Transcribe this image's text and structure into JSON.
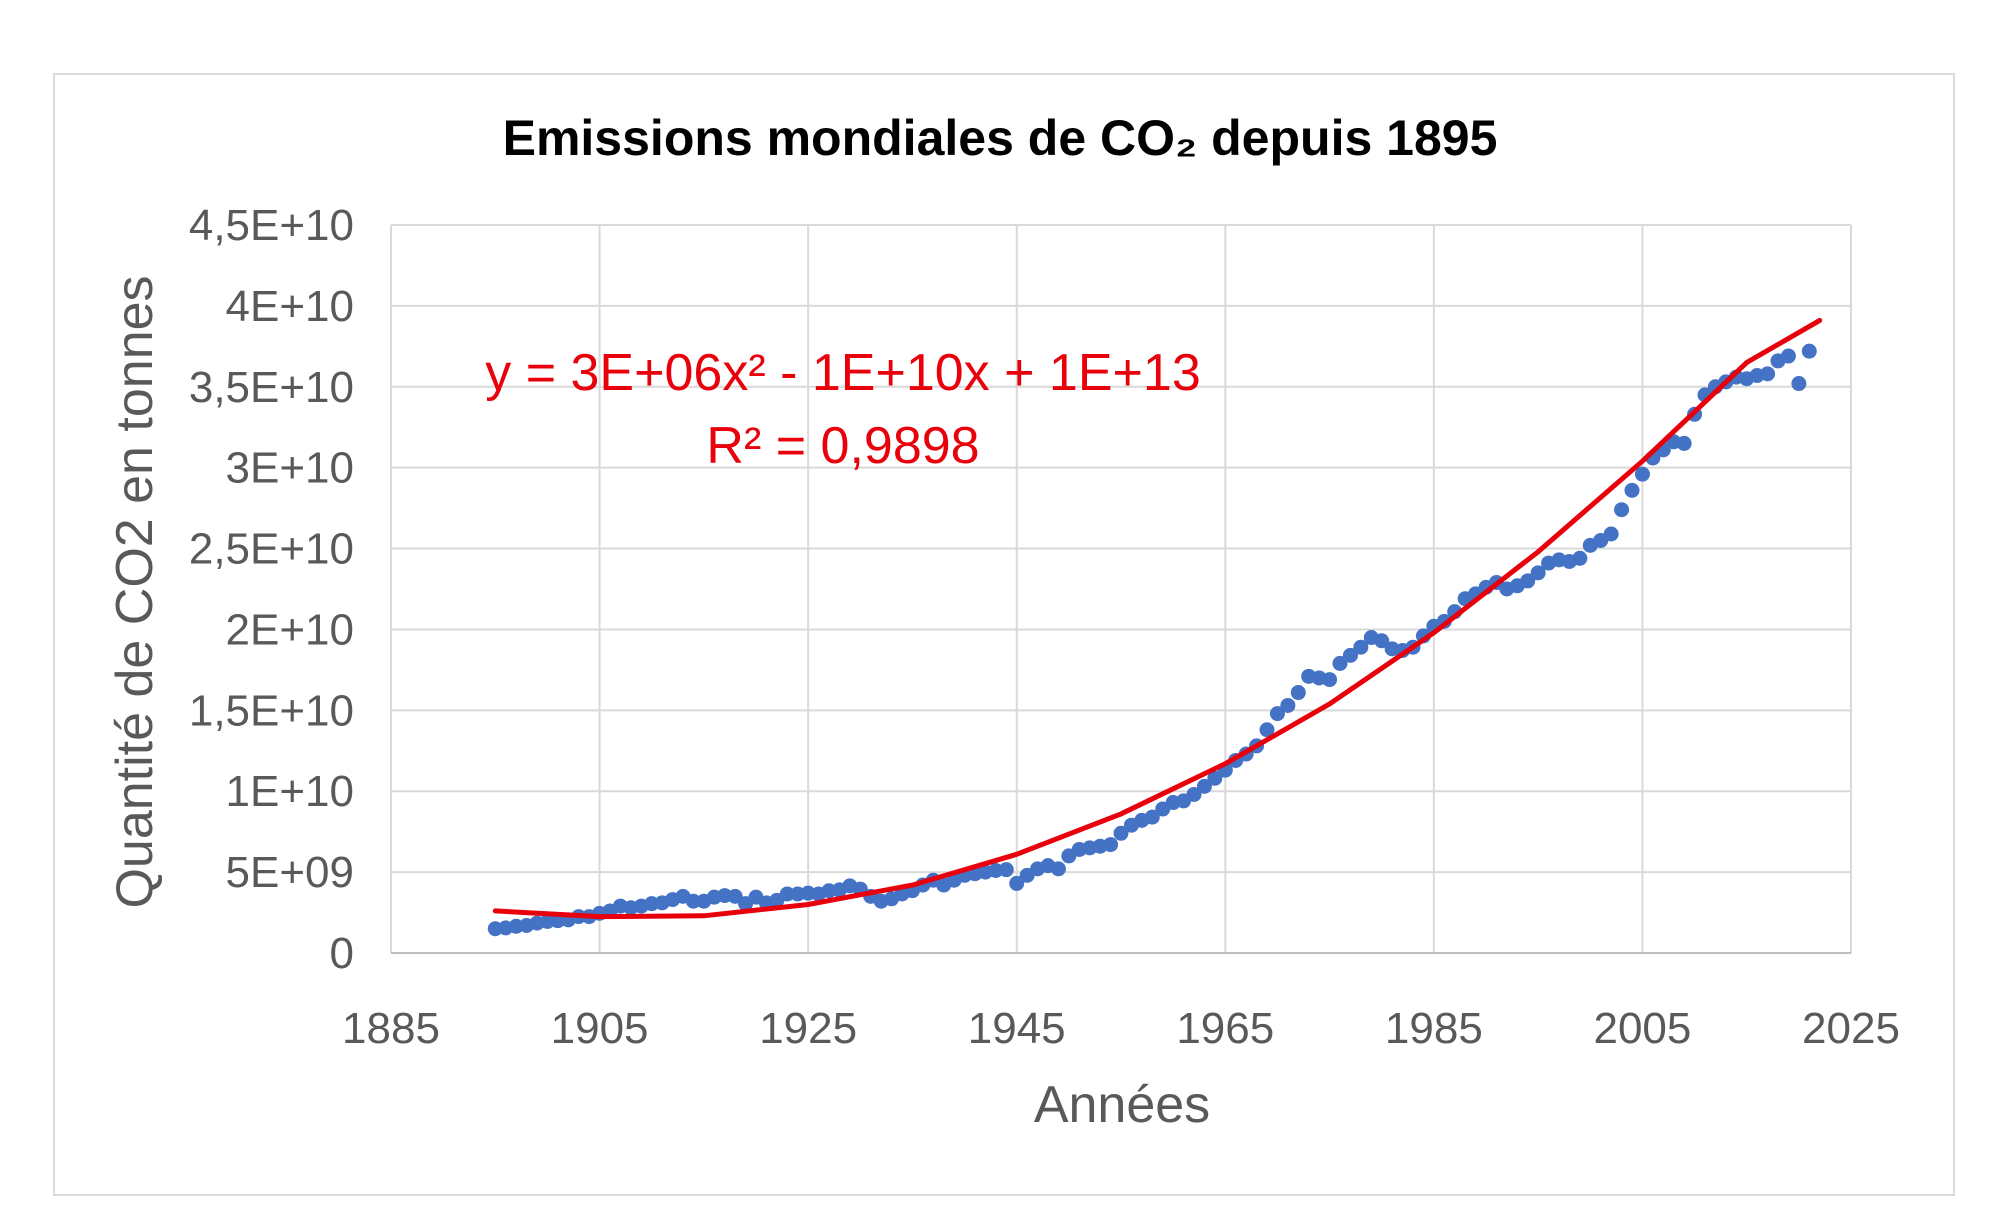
{
  "chart_data": {
    "type": "scatter",
    "title": "Emissions mondiales de CO₂ depuis 1895",
    "xlabel": "Années",
    "ylabel": "Quantité de CO2 en tonnes",
    "xlim": [
      1885,
      2025
    ],
    "ylim": [
      0,
      45000000000
    ],
    "x_ticks": [
      1885,
      1905,
      1925,
      1945,
      1965,
      1985,
      2005,
      2025
    ],
    "x_tick_labels": [
      "1885",
      "1905",
      "1925",
      "1945",
      "1965",
      "1985",
      "2005",
      "2025"
    ],
    "y_ticks": [
      0,
      5000000000,
      10000000000,
      15000000000,
      20000000000,
      25000000000,
      30000000000,
      35000000000,
      40000000000,
      45000000000
    ],
    "y_tick_labels": [
      "0",
      "5E+09",
      "1E+10",
      "1,5E+10",
      "2E+10",
      "2,5E+10",
      "3E+10",
      "3,5E+10",
      "4E+10",
      "4,5E+10"
    ],
    "grid": true,
    "colors": {
      "points": "#4472c4",
      "trend": "#e8000b",
      "grid": "#d9d9d9"
    },
    "trendline": {
      "type": "polynomial",
      "order": 2,
      "equation": "y = 3E+06x² - 1E+10x + 1E+13",
      "r2_label": "R² = 0,9898",
      "points": [
        [
          1895,
          2600000000
        ],
        [
          1905,
          2250000000
        ],
        [
          1915,
          2300000000
        ],
        [
          1925,
          3000000000
        ],
        [
          1935,
          4200000000
        ],
        [
          1945,
          6100000000
        ],
        [
          1955,
          8600000000
        ],
        [
          1965,
          11700000000
        ],
        [
          1975,
          15400000000
        ],
        [
          1985,
          19800000000
        ],
        [
          1995,
          24800000000
        ],
        [
          2005,
          30400000000
        ],
        [
          2015,
          36500000000
        ],
        [
          2022,
          39100000000
        ]
      ]
    },
    "series": [
      {
        "x": [
          1895,
          1896,
          1897,
          1898,
          1899,
          1900,
          1901,
          1902,
          1903,
          1904,
          1905,
          1906,
          1907,
          1908,
          1909,
          1910,
          1911,
          1912,
          1913,
          1914,
          1915,
          1916,
          1917,
          1918,
          1919,
          1920,
          1921,
          1922,
          1923,
          1924,
          1925,
          1926,
          1927,
          1928,
          1929,
          1930,
          1931,
          1932,
          1933,
          1934,
          1935,
          1936,
          1937,
          1938,
          1939,
          1940,
          1941,
          1942,
          1943,
          1944,
          1945,
          1946,
          1947,
          1948,
          1949,
          1950,
          1951,
          1952,
          1953,
          1954,
          1955,
          1956,
          1957,
          1958,
          1959,
          1960,
          1961,
          1962,
          1963,
          1964,
          1965,
          1966,
          1967,
          1968,
          1969,
          1970,
          1971,
          1972,
          1973,
          1974,
          1975,
          1976,
          1977,
          1978,
          1979,
          1980,
          1981,
          1982,
          1983,
          1984,
          1985,
          1986,
          1987,
          1988,
          1989,
          1990,
          1991,
          1992,
          1993,
          1994,
          1995,
          1996,
          1997,
          1998,
          1999,
          2000,
          2001,
          2002,
          2003,
          2004,
          2005,
          2006,
          2007,
          2008,
          2009,
          2010,
          2011,
          2012,
          2013,
          2014,
          2015,
          2016,
          2017,
          2018,
          2019,
          2020,
          2021
        ],
        "y": [
          1500000000,
          1550000000,
          1650000000,
          1700000000,
          1850000000,
          1950000000,
          2000000000,
          2050000000,
          2250000000,
          2250000000,
          2450000000,
          2600000000,
          2900000000,
          2800000000,
          2900000000,
          3050000000,
          3100000000,
          3300000000,
          3500000000,
          3200000000,
          3200000000,
          3450000000,
          3550000000,
          3500000000,
          3050000000,
          3450000000,
          3100000000,
          3250000000,
          3650000000,
          3650000000,
          3700000000,
          3650000000,
          3850000000,
          3900000000,
          4150000000,
          3950000000,
          3500000000,
          3200000000,
          3350000000,
          3650000000,
          3850000000,
          4200000000,
          4500000000,
          4200000000,
          4500000000,
          4800000000,
          4900000000,
          5000000000,
          5100000000,
          5150000000,
          4300000000,
          4800000000,
          5200000000,
          5400000000,
          5200000000,
          6000000000,
          6400000000,
          6500000000,
          6600000000,
          6700000000,
          7400000000,
          7900000000,
          8200000000,
          8400000000,
          8900000000,
          9300000000,
          9400000000,
          9800000000,
          10300000000,
          10800000000,
          11300000000,
          11900000000,
          12300000000,
          12800000000,
          13800000000,
          14800000000,
          15300000000,
          16100000000,
          17100000000,
          17000000000,
          16900000000,
          17900000000,
          18400000000,
          18900000000,
          19500000000,
          19300000000,
          18800000000,
          18700000000,
          18900000000,
          19600000000,
          20200000000,
          20500000000,
          21100000000,
          21900000000,
          22200000000,
          22600000000,
          22900000000,
          22500000000,
          22700000000,
          23000000000,
          23500000000,
          24100000000,
          24300000000,
          24200000000,
          24400000000,
          25200000000,
          25500000000,
          25900000000,
          27400000000,
          28600000000,
          29600000000,
          30600000000,
          31100000000,
          31600000000,
          31500000000,
          33300000000,
          34500000000,
          35000000000,
          35300000000,
          35600000000,
          35500000000,
          35700000000,
          35800000000,
          36600000000,
          36900000000,
          35200000000,
          37200000000
        ]
      }
    ]
  }
}
